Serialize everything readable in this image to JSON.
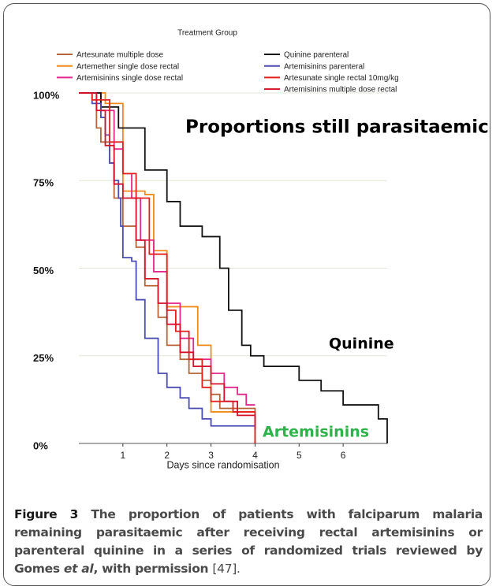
{
  "chart_data": {
    "type": "step",
    "legend_title": "Treatment Group",
    "x_label": "Days since randomisation",
    "xlim": [
      0,
      7
    ],
    "xticks": [
      1,
      2,
      3,
      4,
      5,
      6
    ],
    "ylim": [
      0,
      100
    ],
    "yticks": [
      {
        "value": 0,
        "label": "0%"
      },
      {
        "value": 25,
        "label": "25%"
      },
      {
        "value": 50,
        "label": "50%"
      },
      {
        "value": 75,
        "label": "75%"
      },
      {
        "value": 100,
        "label": "100%"
      }
    ],
    "grid": true,
    "series": [
      {
        "name": "Artesunate multiple dose",
        "color": "#b5653a",
        "x": [
          0,
          0.4,
          0.5,
          0.7,
          0.8,
          1.0,
          1.3,
          1.5,
          1.8,
          2.0,
          2.3,
          2.5,
          2.8,
          3.0,
          3.2,
          4.0
        ],
        "values": [
          100,
          90,
          86,
          80,
          70,
          62,
          56,
          45,
          36,
          28,
          24,
          20,
          18,
          14,
          10,
          0
        ]
      },
      {
        "name": "Artemether single dose rectal",
        "color": "#f08a1c",
        "x": [
          0,
          0.6,
          1.0,
          1.5,
          1.7,
          2.0,
          2.7,
          3.0,
          4.0
        ],
        "values": [
          100,
          97,
          72,
          71,
          55,
          39,
          28,
          9,
          9
        ]
      },
      {
        "name": "Artemisinins single dose rectal",
        "color": "#e3288c",
        "x": [
          0,
          0.5,
          0.8,
          1.0,
          1.2,
          1.4,
          1.7,
          2.0,
          2.3,
          2.6,
          3.0,
          3.3,
          3.6,
          3.8,
          4.0
        ],
        "values": [
          100,
          95,
          84,
          77,
          70,
          58,
          49,
          40,
          30,
          24,
          20,
          16,
          14,
          11,
          11
        ]
      },
      {
        "name": "Quinine parenteral",
        "color": "#111111",
        "x": [
          0,
          0.5,
          0.9,
          1.5,
          2.0,
          2.3,
          2.8,
          3.2,
          3.4,
          3.7,
          3.9,
          4.2,
          5.0,
          5.5,
          6.0,
          6.8,
          7.0
        ],
        "values": [
          100,
          96,
          90,
          78,
          69,
          62,
          59,
          50,
          38,
          28,
          25,
          22,
          18,
          15,
          11,
          7,
          0
        ]
      },
      {
        "name": "Artemisinins parenteral",
        "color": "#4b4bb4",
        "x": [
          0,
          0.3,
          0.5,
          0.6,
          0.7,
          0.8,
          0.9,
          0.95,
          1.0,
          1.2,
          1.3,
          1.5,
          1.8,
          2.0,
          2.3,
          2.5,
          2.8,
          3.0,
          4.0
        ],
        "values": [
          100,
          97,
          93,
          88,
          80,
          75,
          70,
          62,
          53,
          52,
          41,
          30,
          20,
          16,
          13,
          10,
          7,
          5,
          5
        ]
      },
      {
        "name": "Artesunate single rectal 10mg/kg",
        "color": "#e4201e",
        "x": [
          0,
          0.3,
          0.7,
          1.0,
          1.3,
          1.6,
          2.0,
          2.2,
          2.5,
          2.8,
          3.0,
          3.5,
          4.0
        ],
        "values": [
          100,
          98,
          86,
          77,
          70,
          54,
          38,
          32,
          24,
          16,
          12,
          9,
          0
        ]
      },
      {
        "name": "Artemisinins multiple dose rectal",
        "color": "#d4102a",
        "x": [
          0,
          0.4,
          0.6,
          0.8,
          1.0,
          1.3,
          1.5,
          1.8,
          2.0,
          2.3,
          2.6,
          3.0,
          3.3,
          3.6,
          4.0
        ],
        "values": [
          100,
          95,
          85,
          74,
          70,
          58,
          47,
          40,
          34,
          26,
          22,
          17,
          12,
          8,
          4
        ]
      }
    ],
    "annotations": [
      {
        "text": "Proportions still parasitaemic",
        "color": "#000000"
      },
      {
        "text": "Quinine",
        "color": "#000000"
      },
      {
        "text": "Artemisinins",
        "color": "#2db34a"
      }
    ]
  },
  "caption": {
    "label": "Figure 3",
    "text": "The proportion of patients with falciparum malaria remaining parasitaemic after receiving rectal artemisinins or parenteral quinine in a series of randomized trials reviewed by Gomes ",
    "italic": "et al",
    "text_end": ", with permission",
    "ref": "[47]."
  }
}
